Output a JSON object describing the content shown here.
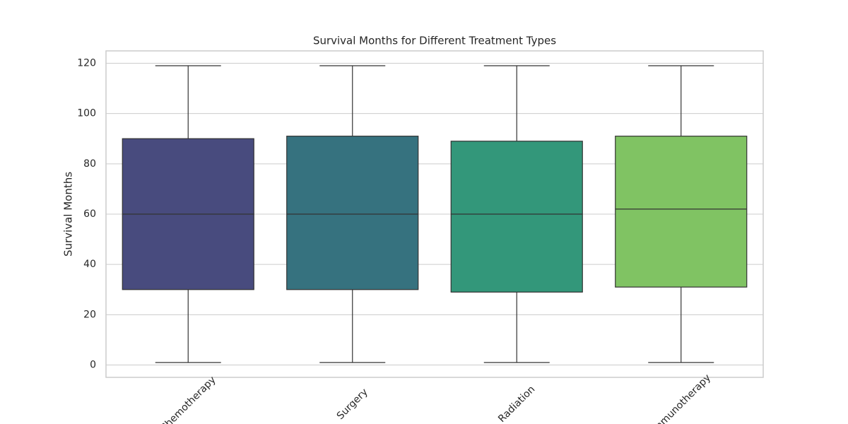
{
  "chart_data": {
    "type": "box",
    "title": "Survival Months for Different Treatment Types",
    "y_label": "Survival Months",
    "categories": [
      "Chemotherapy",
      "Surgery",
      "Radiation",
      "Immunotherapy"
    ],
    "boxes": [
      {
        "min": 1,
        "q1": 30,
        "median": 60,
        "q3": 90,
        "max": 119
      },
      {
        "min": 1,
        "q1": 30,
        "median": 60,
        "q3": 91,
        "max": 119
      },
      {
        "min": 1,
        "q1": 29,
        "median": 60,
        "q3": 89,
        "max": 119
      },
      {
        "min": 1,
        "q1": 31,
        "median": 62,
        "q3": 91,
        "max": 119
      }
    ],
    "colors": [
      "#484b7e",
      "#36727f",
      "#33977a",
      "#80c363"
    ],
    "ylim": [
      -4.9,
      124.9
    ],
    "yticks": [
      0,
      20,
      40,
      60,
      80,
      100,
      120
    ],
    "grid": true
  }
}
